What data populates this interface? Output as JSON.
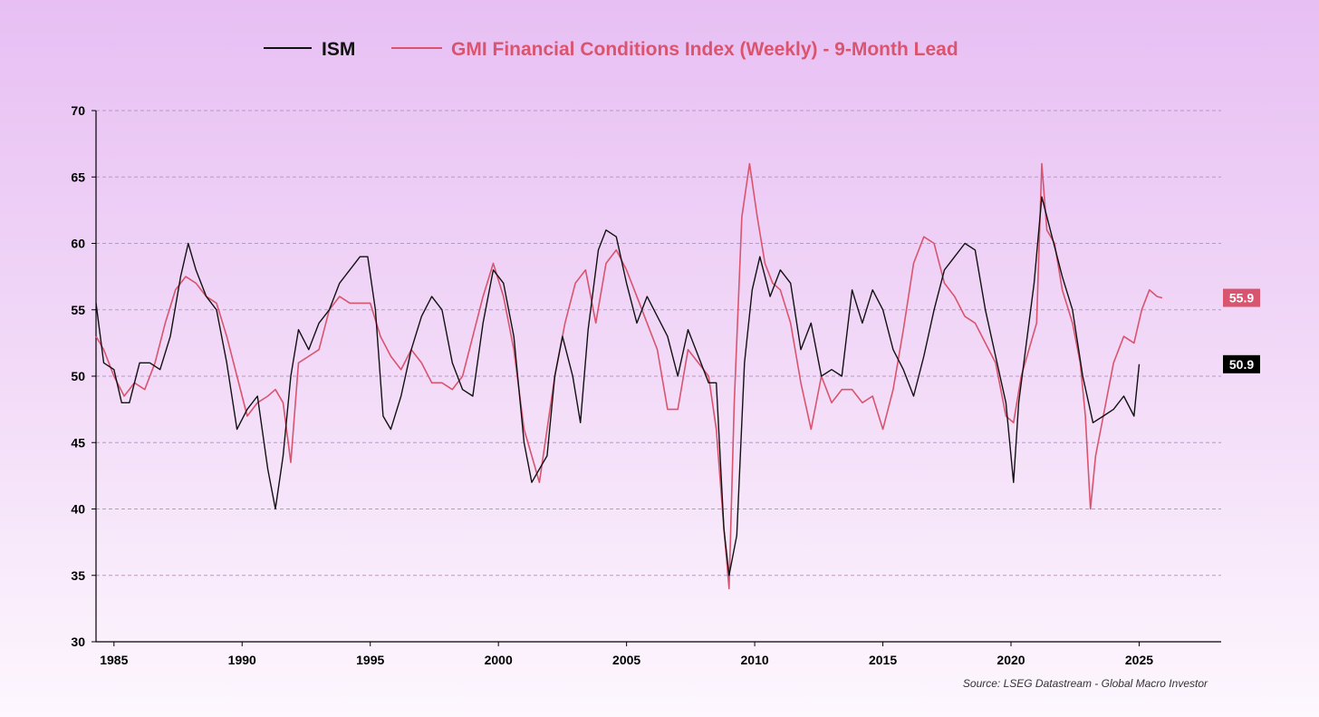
{
  "chart_data": {
    "type": "line",
    "title": "",
    "xlabel": "",
    "ylabel": "",
    "xlim": [
      1984.3,
      2028.2
    ],
    "ylim": [
      30,
      70
    ],
    "grid": true,
    "legend_position": "top-center",
    "x_ticks": [
      1985,
      1990,
      1995,
      2000,
      2005,
      2010,
      2015,
      2020,
      2025
    ],
    "y_ticks": [
      30,
      35,
      40,
      45,
      50,
      55,
      60,
      65,
      70
    ],
    "source": "Source: LSEG Datastream - Global Macro Investor",
    "series": [
      {
        "name": "ISM",
        "color": "#111111",
        "end_label": "50.9",
        "x": [
          1984.3,
          1984.6,
          1985.0,
          1985.3,
          1985.6,
          1986.0,
          1986.4,
          1986.8,
          1987.2,
          1987.6,
          1987.9,
          1988.2,
          1988.6,
          1989.0,
          1989.4,
          1989.8,
          1990.2,
          1990.6,
          1991.0,
          1991.3,
          1991.6,
          1991.9,
          1992.2,
          1992.6,
          1993.0,
          1993.4,
          1993.8,
          1994.2,
          1994.6,
          1994.9,
          1995.2,
          1995.5,
          1995.8,
          1996.2,
          1996.6,
          1997.0,
          1997.4,
          1997.8,
          1998.2,
          1998.6,
          1999.0,
          1999.4,
          1999.8,
          2000.2,
          2000.6,
          2001.0,
          2001.3,
          2001.6,
          2001.9,
          2002.2,
          2002.5,
          2002.9,
          2003.2,
          2003.5,
          2003.9,
          2004.2,
          2004.6,
          2005.0,
          2005.4,
          2005.8,
          2006.2,
          2006.6,
          2007.0,
          2007.4,
          2007.8,
          2008.2,
          2008.5,
          2008.8,
          2009.0,
          2009.3,
          2009.6,
          2009.9,
          2010.2,
          2010.6,
          2011.0,
          2011.4,
          2011.8,
          2012.2,
          2012.6,
          2013.0,
          2013.4,
          2013.8,
          2014.2,
          2014.6,
          2015.0,
          2015.4,
          2015.8,
          2016.2,
          2016.6,
          2017.0,
          2017.4,
          2017.8,
          2018.2,
          2018.6,
          2019.0,
          2019.4,
          2019.8,
          2020.1,
          2020.3,
          2020.6,
          2020.9,
          2021.2,
          2021.6,
          2022.0,
          2022.4,
          2022.8,
          2023.2,
          2023.6,
          2024.0,
          2024.4,
          2024.8,
          2025.0
        ],
        "y": [
          55.5,
          51.0,
          50.5,
          48.0,
          48.0,
          51.0,
          51.0,
          50.5,
          53.0,
          57.5,
          60.0,
          58.0,
          56.0,
          55.0,
          51.0,
          46.0,
          47.5,
          48.5,
          43.0,
          40.0,
          44.0,
          50.0,
          53.5,
          52.0,
          54.0,
          55.0,
          57.0,
          58.0,
          59.0,
          59.0,
          55.0,
          47.0,
          46.0,
          48.5,
          52.0,
          54.5,
          56.0,
          55.0,
          51.0,
          49.0,
          48.5,
          54.0,
          58.0,
          57.0,
          53.0,
          45.0,
          42.0,
          43.0,
          44.0,
          50.0,
          53.0,
          50.0,
          46.5,
          53.5,
          59.5,
          61.0,
          60.5,
          57.0,
          54.0,
          56.0,
          54.5,
          53.0,
          50.0,
          53.5,
          51.5,
          49.5,
          49.5,
          38.5,
          35.0,
          38.0,
          51.0,
          56.5,
          59.0,
          56.0,
          58.0,
          57.0,
          52.0,
          54.0,
          50.0,
          50.5,
          50.0,
          56.5,
          54.0,
          56.5,
          55.0,
          52.0,
          50.5,
          48.5,
          51.5,
          55.0,
          58.0,
          59.0,
          60.0,
          59.5,
          55.0,
          51.5,
          48.0,
          42.0,
          48.0,
          52.5,
          57.0,
          63.5,
          60.5,
          57.5,
          55.0,
          50.0,
          46.5,
          47.0,
          47.5,
          48.5,
          47.0,
          50.9
        ]
      },
      {
        "name": "GMI Financial Conditions Index (Weekly) - 9-Month Lead",
        "color": "#d9546f",
        "end_label": "55.9",
        "x": [
          1984.3,
          1984.6,
          1985.0,
          1985.4,
          1985.8,
          1986.2,
          1986.6,
          1987.0,
          1987.4,
          1987.8,
          1988.2,
          1988.6,
          1989.0,
          1989.4,
          1989.8,
          1990.2,
          1990.6,
          1991.0,
          1991.3,
          1991.6,
          1991.9,
          1992.2,
          1992.6,
          1993.0,
          1993.4,
          1993.8,
          1994.2,
          1994.6,
          1995.0,
          1995.4,
          1995.8,
          1996.2,
          1996.6,
          1997.0,
          1997.4,
          1997.8,
          1998.2,
          1998.6,
          1999.0,
          1999.4,
          1999.8,
          2000.2,
          2000.6,
          2001.0,
          2001.3,
          2001.6,
          2001.9,
          2002.2,
          2002.6,
          2003.0,
          2003.4,
          2003.8,
          2004.2,
          2004.6,
          2005.0,
          2005.4,
          2005.8,
          2006.2,
          2006.6,
          2007.0,
          2007.4,
          2007.8,
          2008.2,
          2008.5,
          2008.8,
          2009.0,
          2009.2,
          2009.5,
          2009.8,
          2010.1,
          2010.4,
          2010.7,
          2011.0,
          2011.4,
          2011.8,
          2012.2,
          2012.6,
          2013.0,
          2013.4,
          2013.8,
          2014.2,
          2014.6,
          2015.0,
          2015.4,
          2015.8,
          2016.2,
          2016.6,
          2017.0,
          2017.4,
          2017.8,
          2018.2,
          2018.6,
          2019.0,
          2019.4,
          2019.8,
          2020.1,
          2020.4,
          2020.7,
          2021.0,
          2021.2,
          2021.4,
          2021.7,
          2022.0,
          2022.4,
          2022.7,
          2022.9,
          2023.1,
          2023.3,
          2023.6,
          2024.0,
          2024.4,
          2024.8,
          2025.1,
          2025.4,
          2025.7,
          2025.9
        ],
        "y": [
          53.0,
          52.0,
          50.0,
          48.5,
          49.5,
          49.0,
          51.0,
          54.0,
          56.5,
          57.5,
          57.0,
          56.0,
          55.5,
          53.0,
          50.0,
          47.0,
          48.0,
          48.5,
          49.0,
          48.0,
          43.5,
          51.0,
          51.5,
          52.0,
          55.0,
          56.0,
          55.5,
          55.5,
          55.5,
          53.0,
          51.5,
          50.5,
          52.0,
          51.0,
          49.5,
          49.5,
          49.0,
          50.0,
          53.0,
          56.0,
          58.5,
          56.0,
          52.0,
          46.0,
          44.0,
          42.0,
          46.0,
          50.0,
          54.0,
          57.0,
          58.0,
          54.0,
          58.5,
          59.5,
          58.0,
          56.0,
          54.0,
          52.0,
          47.5,
          47.5,
          52.0,
          51.0,
          50.0,
          46.0,
          38.5,
          34.0,
          48.0,
          62.0,
          66.0,
          62.0,
          58.5,
          57.0,
          56.5,
          54.0,
          49.5,
          46.0,
          50.0,
          48.0,
          49.0,
          49.0,
          48.0,
          48.5,
          46.0,
          49.0,
          53.5,
          58.5,
          60.5,
          60.0,
          57.0,
          56.0,
          54.5,
          54.0,
          52.5,
          51.0,
          47.0,
          46.5,
          50.0,
          52.0,
          54.0,
          66.0,
          61.0,
          60.0,
          56.5,
          54.0,
          51.0,
          47.0,
          40.0,
          44.0,
          47.0,
          51.0,
          53.0,
          52.5,
          55.0,
          56.5,
          56.0,
          55.9
        ]
      }
    ]
  }
}
